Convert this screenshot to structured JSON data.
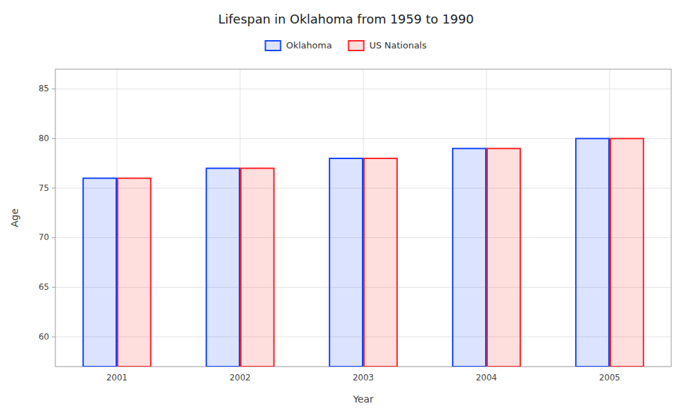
{
  "chart_data": {
    "type": "bar",
    "title": "Lifespan in Oklahoma from 1959 to 1990",
    "xlabel": "Year",
    "ylabel": "Age",
    "categories": [
      "2001",
      "2002",
      "2003",
      "2004",
      "2005"
    ],
    "series": [
      {
        "name": "Oklahoma",
        "color": "#1144ff",
        "values": [
          76,
          77,
          78,
          79,
          80
        ]
      },
      {
        "name": "US Nationals",
        "color": "#ff2222",
        "values": [
          76,
          77,
          78,
          79,
          80
        ]
      }
    ],
    "ylim": [
      57,
      87
    ],
    "yticks": [
      60,
      65,
      70,
      75,
      80,
      85
    ],
    "grid": true,
    "legend": "top"
  }
}
